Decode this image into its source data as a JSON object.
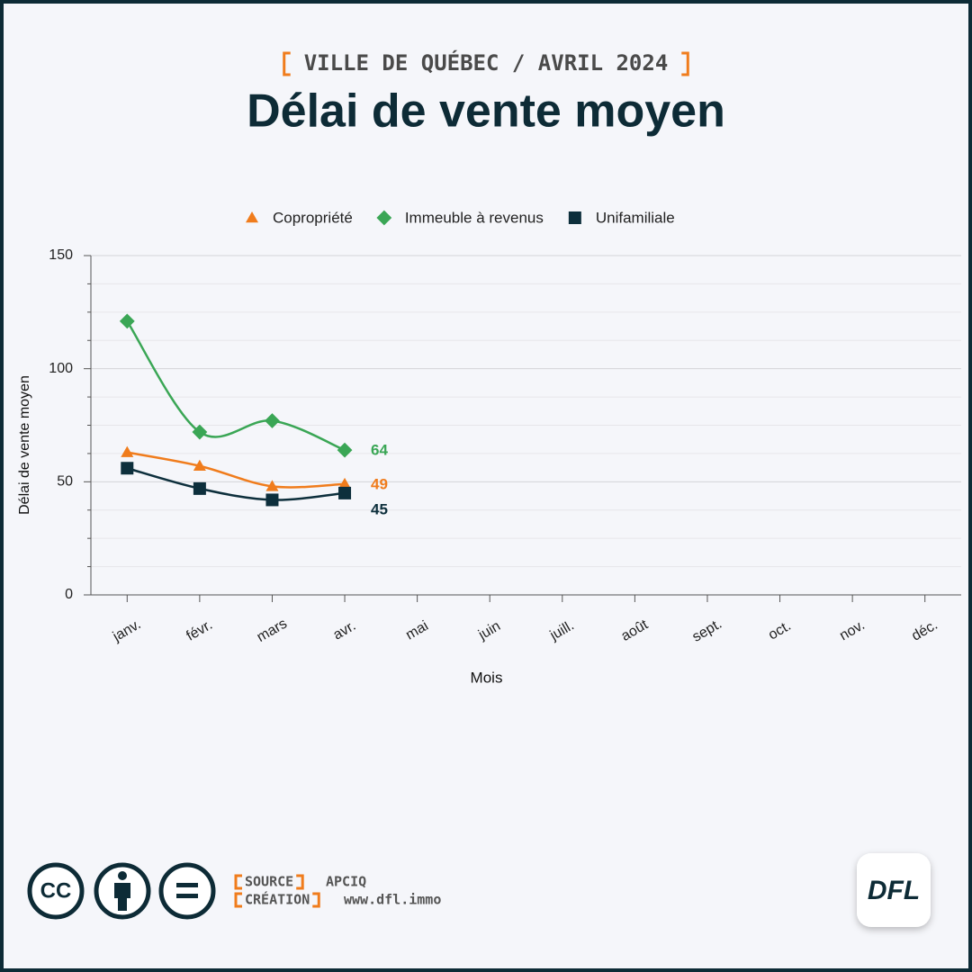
{
  "header": {
    "subtitle": "VILLE DE QUÉBEC / AVRIL 2024",
    "title": "Délai de vente moyen"
  },
  "chart_data": {
    "type": "line",
    "categories": [
      "janv.",
      "févr.",
      "mars",
      "avr.",
      "mai",
      "juin",
      "juill.",
      "août",
      "sept.",
      "oct.",
      "nov.",
      "déc."
    ],
    "series": [
      {
        "name": "Copropriété",
        "color": "#f07c1c",
        "marker": "triangle",
        "values": [
          63,
          57,
          48,
          49,
          null,
          null,
          null,
          null,
          null,
          null,
          null,
          null
        ]
      },
      {
        "name": "Immeuble à revenus",
        "color": "#3aa655",
        "marker": "diamond",
        "values": [
          121,
          72,
          77,
          64,
          null,
          null,
          null,
          null,
          null,
          null,
          null,
          null
        ]
      },
      {
        "name": "Unifamiliale",
        "color": "#0d2f3c",
        "marker": "square",
        "values": [
          56,
          47,
          42,
          45,
          null,
          null,
          null,
          null,
          null,
          null,
          null,
          null
        ]
      }
    ],
    "ylim": [
      0,
      150
    ],
    "yticks": [
      0,
      50,
      100,
      150
    ],
    "minor_yticks": [
      12.5,
      25,
      37.5,
      62.5,
      75,
      87.5,
      112.5,
      125,
      137.5
    ],
    "grid": true,
    "legend": "top",
    "x_label": "Mois",
    "y_label": "Délai de vente moyen"
  },
  "footer": {
    "source_label": "SOURCE",
    "source": "APCIQ",
    "creation_label": "CRÉATION",
    "creation": "www.dfl.immo",
    "cc": "CC",
    "logo": "DFL"
  }
}
